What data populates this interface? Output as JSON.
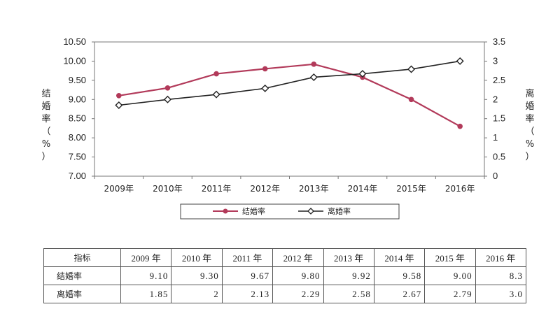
{
  "chart_data": {
    "type": "line",
    "categories": [
      "2009年",
      "2010年",
      "2011年",
      "2012年",
      "2013年",
      "2014年",
      "2015年",
      "2016年"
    ],
    "series": [
      {
        "name": "结婚率",
        "axis": "left",
        "color": "#b23a5a",
        "marker": "circle",
        "values": [
          9.1,
          9.3,
          9.67,
          9.8,
          9.92,
          9.58,
          9.0,
          8.3
        ]
      },
      {
        "name": "离婚率",
        "axis": "right",
        "color": "#222222",
        "marker": "diamond",
        "values": [
          1.85,
          2,
          2.13,
          2.29,
          2.58,
          2.67,
          2.79,
          3.0
        ]
      }
    ],
    "y_left": {
      "label_chars": [
        "结",
        "婚",
        "率",
        "（",
        "%",
        "）"
      ],
      "ylim": [
        7.0,
        10.5
      ],
      "ticks": [
        "7.00",
        "7.50",
        "8.00",
        "8.50",
        "9.00",
        "9.50",
        "10.00",
        "10.50"
      ]
    },
    "y_right": {
      "label_chars": [
        "离",
        "婚",
        "率",
        "（",
        "%",
        "）"
      ],
      "ylim": [
        0,
        3.5
      ],
      "ticks": [
        "0",
        "0.5",
        "1",
        "1.5",
        "2",
        "2.5",
        "3",
        "3.5"
      ]
    },
    "grid": false,
    "legend_position": "bottom"
  },
  "table": {
    "header_label": "指标",
    "columns": [
      "2009 年",
      "2010 年",
      "2011 年",
      "2012 年",
      "2013 年",
      "2014 年",
      "2015 年",
      "2016 年"
    ],
    "rows": [
      {
        "label": "结婚率",
        "values": [
          "9.10",
          "9.30",
          "9.67",
          "9.80",
          "9.92",
          "9.58",
          "9.00",
          "8.3"
        ]
      },
      {
        "label": "离婚率",
        "values": [
          "1.85",
          "2",
          "2.13",
          "2.29",
          "2.58",
          "2.67",
          "2.79",
          "3.0"
        ]
      }
    ]
  }
}
